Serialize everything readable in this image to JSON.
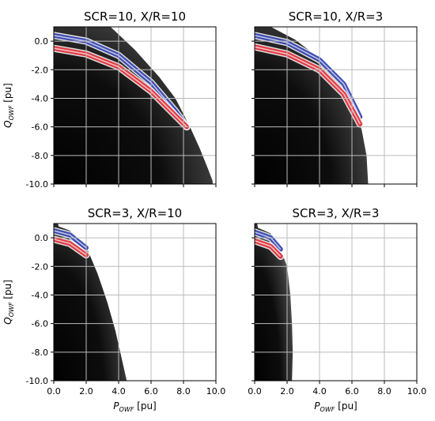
{
  "chart_data": [
    {
      "type": "heatmap",
      "title": "SCR=10, X/R=10",
      "xlabel": "",
      "ylabel": "Q_OWF [pu]",
      "xlim": [
        0,
        10
      ],
      "ylim": [
        -10,
        1
      ],
      "x_ticks": [
        "0.0",
        "2.0",
        "4.0",
        "6.0",
        "8.0",
        "10.0"
      ],
      "y_ticks": [
        "0.0",
        "-2.0",
        "-4.0",
        "-6.0",
        "-8.0",
        "-10.0"
      ],
      "grid": true,
      "region_outer_boundary": [
        [
          3.5,
          1.0
        ],
        [
          5.0,
          -0.6
        ],
        [
          6.5,
          -2.5
        ],
        [
          7.5,
          -4.0
        ],
        [
          8.4,
          -6.0
        ],
        [
          9.0,
          -7.5
        ],
        [
          9.5,
          -8.9
        ],
        [
          9.8,
          -9.8
        ]
      ],
      "band_blue": [
        [
          0,
          0.4
        ],
        [
          2,
          0.0
        ],
        [
          4,
          -1.0
        ],
        [
          6,
          -2.9
        ],
        [
          7.5,
          -4.9
        ],
        [
          8.2,
          -6.0
        ]
      ],
      "band_red": [
        [
          0,
          -0.5
        ],
        [
          2,
          -0.9
        ],
        [
          4,
          -1.8
        ],
        [
          6,
          -3.5
        ],
        [
          7.5,
          -5.2
        ],
        [
          8.2,
          -6.0
        ]
      ]
    },
    {
      "type": "heatmap",
      "title": "SCR=10, X/R=3",
      "xlabel": "",
      "ylabel": "",
      "xlim": [
        0,
        10
      ],
      "ylim": [
        -10,
        1
      ],
      "x_ticks": [
        "0.0",
        "2.0",
        "4.0",
        "6.0",
        "8.0",
        "10.0"
      ],
      "y_ticks": [
        "0.0",
        "-2.0",
        "-4.0",
        "-6.0",
        "-8.0",
        "-10.0"
      ],
      "grid": true,
      "region_outer_boundary": [
        [
          1.0,
          1.0
        ],
        [
          2.5,
          0.1
        ],
        [
          4.0,
          -1.2
        ],
        [
          5.2,
          -2.8
        ],
        [
          6.1,
          -4.6
        ],
        [
          6.6,
          -6.2
        ],
        [
          6.9,
          -8.0
        ],
        [
          7.0,
          -10.0
        ]
      ],
      "band_blue": [
        [
          0,
          0.4
        ],
        [
          2,
          -0.1
        ],
        [
          4,
          -1.3
        ],
        [
          5.5,
          -3.0
        ],
        [
          6.5,
          -5.3
        ]
      ],
      "band_red": [
        [
          0,
          -0.4
        ],
        [
          2,
          -0.9
        ],
        [
          4,
          -2.0
        ],
        [
          5.5,
          -3.7
        ],
        [
          6.5,
          -5.8
        ]
      ]
    },
    {
      "type": "heatmap",
      "title": "SCR=3, X/R=10",
      "xlabel": "P_OWF [pu]",
      "ylabel": "Q_OWF [pu]",
      "xlim": [
        0,
        10
      ],
      "ylim": [
        -10,
        1
      ],
      "x_ticks": [
        "0.0",
        "2.0",
        "4.0",
        "6.0",
        "8.0",
        "10.0"
      ],
      "y_ticks": [
        "0.0",
        "-2.0",
        "-4.0",
        "-6.0",
        "-8.0",
        "-10.0"
      ],
      "grid": true,
      "region_outer_boundary": [
        [
          0.3,
          0.8
        ],
        [
          1.0,
          0.5
        ],
        [
          2.0,
          -0.6
        ],
        [
          2.7,
          -2.5
        ],
        [
          3.3,
          -4.5
        ],
        [
          3.8,
          -6.5
        ],
        [
          4.2,
          -8.5
        ],
        [
          4.5,
          -10.0
        ]
      ],
      "band_blue": [
        [
          0,
          0.5
        ],
        [
          1,
          0.2
        ],
        [
          2,
          -0.7
        ]
      ],
      "band_red": [
        [
          0,
          -0.1
        ],
        [
          1,
          -0.4
        ],
        [
          2,
          -1.2
        ]
      ]
    },
    {
      "type": "heatmap",
      "title": "SCR=3, X/R=3",
      "xlabel": "P_OWF [pu]",
      "ylabel": "",
      "xlim": [
        0,
        10
      ],
      "ylim": [
        -10,
        1
      ],
      "x_ticks": [
        "0.0",
        "2.0",
        "4.0",
        "6.0",
        "8.0",
        "10.0"
      ],
      "y_ticks": [
        "0.0",
        "-2.0",
        "-4.0",
        "-6.0",
        "-8.0",
        "-10.0"
      ],
      "grid": true,
      "region_outer_boundary": [
        [
          0.2,
          0.7
        ],
        [
          1.0,
          0.3
        ],
        [
          1.6,
          -0.8
        ],
        [
          2.0,
          -2.0
        ],
        [
          2.2,
          -4.0
        ],
        [
          2.3,
          -6.0
        ],
        [
          2.35,
          -8.0
        ],
        [
          2.3,
          -10.0
        ]
      ],
      "band_blue": [
        [
          0,
          0.4
        ],
        [
          1,
          0.0
        ],
        [
          1.6,
          -0.8
        ]
      ],
      "band_red": [
        [
          0,
          -0.2
        ],
        [
          1,
          -0.6
        ],
        [
          1.6,
          -1.3
        ]
      ]
    }
  ],
  "colors": {
    "region": "#000000",
    "band_blue": "#2233aa",
    "band_red": "#e0202a",
    "grid": "#bbbbbb"
  }
}
